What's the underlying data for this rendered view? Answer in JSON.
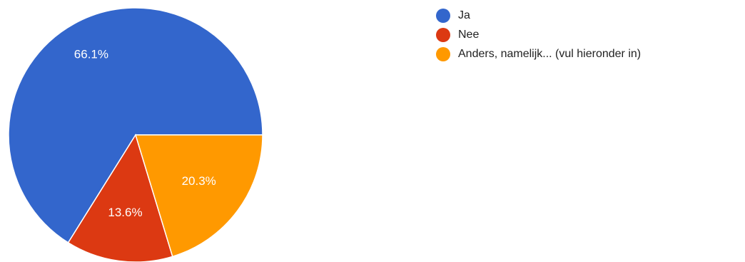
{
  "chart_data": {
    "type": "pie",
    "categories": [
      "Ja",
      "Nee",
      "Anders, namelijk... (vul hieronder in)"
    ],
    "values": [
      66.1,
      13.6,
      20.3
    ],
    "value_labels": [
      "66.1%",
      "13.6%",
      "20.3%"
    ],
    "colors": [
      "#3366cc",
      "#dc3912",
      "#ff9900"
    ],
    "start_angle_deg": 90,
    "direction": "counterclockwise",
    "legend_position": "right",
    "title": ""
  }
}
